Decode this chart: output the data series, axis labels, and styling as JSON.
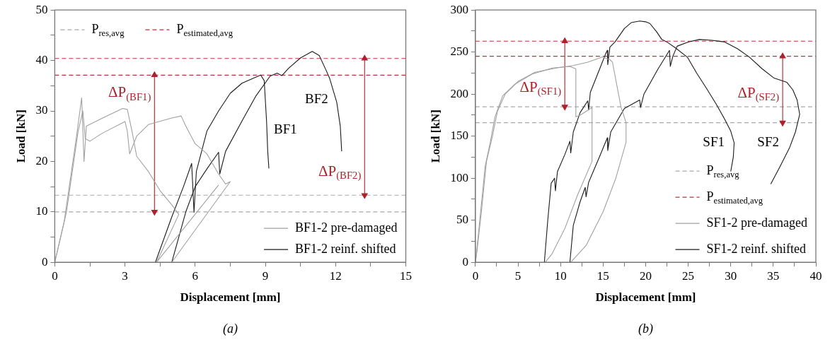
{
  "chart_data": [
    {
      "type": "line",
      "xlabel": "Displacement [mm]",
      "ylabel": "Load [kN]",
      "xlim": [
        0,
        15
      ],
      "xticks": [
        0,
        {
          "value": 1.5,
          "label": null
        },
        3,
        {
          "value": 4.5,
          "label": null
        },
        6,
        {
          "value": 7.5,
          "label": null
        },
        9,
        {
          "value": 10.5,
          "label": null
        },
        12,
        {
          "value": 13.5,
          "label": null
        },
        15
      ],
      "ylim": [
        0,
        50
      ],
      "yticks": [
        0,
        {
          "value": 5,
          "label": null
        },
        10,
        {
          "value": 15,
          "label": null
        },
        20,
        {
          "value": 25,
          "label": null
        },
        30,
        {
          "value": 35,
          "label": null
        },
        40,
        {
          "value": 45,
          "label": null
        },
        50
      ],
      "grid": false,
      "legend": "bottom right",
      "marker": "none",
      "line_style": "solid",
      "series": [
        {
          "name": "BF1-2 pre-damaged",
          "color": "#a0a0a0",
          "x": [
            0,
            0.4,
            0.9,
            1.15,
            1.25,
            1.35,
            2.0,
            2.9,
            3.1,
            3.3,
            3.5,
            4.0,
            4.5,
            5.0,
            5.3,
            4.35,
            7.0
          ],
          "values": [
            0,
            8,
            24,
            32.6,
            20,
            27,
            28.5,
            30.5,
            30.3,
            26,
            21,
            18,
            14.2,
            11.4,
            9.5,
            0,
            15.3
          ]
        },
        {
          "color": "#a0a0a0",
          "x": [
            0,
            0.5,
            1.0,
            1.2,
            1.3,
            1.5,
            2.0,
            3.0,
            3.1,
            3.2,
            3.5,
            4.0,
            5.0,
            5.4,
            5.6,
            6.0,
            6.5,
            7.0,
            7.3,
            7.5,
            5.0
          ],
          "values": [
            0,
            10,
            26,
            30,
            24.5,
            24,
            25.5,
            27.9,
            26,
            21.5,
            25,
            27.3,
            28.6,
            29,
            27,
            23.5,
            21.5,
            17.5,
            15.5,
            16,
            0
          ]
        },
        {
          "name": "BF1-2 reinf. shifted",
          "color": "#1a1a1a",
          "x": [
            4.3,
            5.0,
            5.5,
            5.85,
            5.95,
            6.05,
            6.5,
            7.0,
            7.5,
            8.0,
            8.5,
            8.8,
            8.95,
            9.05,
            9.1,
            9.15
          ],
          "values": [
            0,
            9,
            15,
            19.6,
            9.9,
            18,
            26,
            30,
            33.5,
            35.5,
            36.5,
            37.1,
            36,
            28,
            22,
            18.6
          ]
        },
        {
          "color": "#1a1a1a",
          "x": [
            5.0,
            5.6,
            6.0,
            6.5,
            7.0,
            7.05,
            7.3,
            8.0,
            8.6,
            9.2,
            9.5,
            9.7,
            10.0,
            10.5,
            11.0,
            11.3,
            11.6,
            11.75,
            12.05,
            12.2,
            12.26
          ],
          "values": [
            0,
            10,
            15,
            18.5,
            21.8,
            17.5,
            22,
            28,
            33,
            36.9,
            37.5,
            37,
            38.5,
            40.5,
            41.8,
            41,
            38,
            36.4,
            31.7,
            27,
            22
          ]
        },
        {
          "name": "ΔP$_{(BF1)}$",
          "color": "#b0202a",
          "marker": "triangle",
          "x": [
            4.26,
            4.26
          ],
          "values": [
            37.1,
            10.0
          ]
        },
        {
          "name": "ΔP$_{(BF2)}$",
          "color": "#b0202a",
          "marker": "triangle",
          "x": [
            13.24,
            13.24
          ],
          "values": [
            40.4,
            13.3
          ]
        }
      ],
      "ref_lines": [
        {
          "axis": "y",
          "value": 13.3,
          "label": "P$_{res,avg}$",
          "color": "#a8a8a8",
          "line_style": "dashed"
        },
        {
          "axis": "y",
          "value": 10.0,
          "color": "#a8a8a8",
          "line_style": "dashed"
        },
        {
          "axis": "y",
          "value": 40.4,
          "label": "P$_{estimated,avg}$",
          "color": "#c0303a",
          "line_style": "dashed"
        },
        {
          "axis": "y",
          "value": 37.1,
          "color": "#c0303a",
          "line_style": "dashed"
        }
      ],
      "annotations": [
        "BF1",
        "BF2",
        "(a)"
      ]
    },
    {
      "type": "line",
      "xlabel": "Displacement [mm]",
      "ylabel": "Load [kN]",
      "xlim": [
        0,
        40
      ],
      "xticks": [
        0,
        {
          "value": 2.5,
          "label": null
        },
        5,
        {
          "value": 7.5,
          "label": null
        },
        10,
        {
          "value": 12.5,
          "label": null
        },
        15,
        {
          "value": 17.5,
          "label": null
        },
        20,
        {
          "value": 22.5,
          "label": null
        },
        25,
        {
          "value": 27.5,
          "label": null
        },
        30,
        {
          "value": 32.5,
          "label": null
        },
        35,
        {
          "value": 37.5,
          "label": null
        },
        40
      ],
      "ylim": [
        0,
        300
      ],
      "yticks": [
        0,
        {
          "value": 25,
          "label": null
        },
        50,
        {
          "value": 75,
          "label": null
        },
        100,
        {
          "value": 125,
          "label": null
        },
        150,
        {
          "value": 175,
          "label": null
        },
        200,
        {
          "value": 225,
          "label": null
        },
        250,
        {
          "value": 275,
          "label": null
        },
        300
      ],
      "grid": false,
      "legend": "bottom right",
      "marker": "none",
      "line_style": "solid",
      "series": [
        {
          "name": "SF1-2 pre-damaged",
          "color": "#a0a0a0",
          "x": [
            0,
            0.1,
            0.55,
            1.14,
            1.73,
            2.3,
            3.2,
            4.66,
            6.7,
            9.05,
            11.1,
            11.8,
            11.8,
            12.3,
            13.7,
            13.7,
            12,
            10.5,
            9,
            8.2
          ],
          "values": [
            0,
            9,
            54,
            114,
            142,
            173,
            198,
            212,
            224,
            231,
            233,
            230,
            173,
            175,
            184,
            120,
            80,
            40,
            10,
            0
          ]
        },
        {
          "color": "#a0a0a0",
          "x": [
            0,
            0.2,
            0.7,
            1.3,
            2.0,
            2.6,
            3.5,
            5,
            7,
            9.5,
            11.5,
            13.2,
            14.9,
            15.8,
            16.1,
            17.1,
            17.7,
            17.7,
            16.5,
            15,
            13,
            11.2
          ],
          "values": [
            0,
            15,
            60,
            120,
            150,
            180,
            200,
            215,
            226,
            231,
            234,
            238,
            244,
            241,
            238,
            185,
            166,
            143,
            100,
            60,
            20,
            0
          ]
        },
        {
          "name": "SF1-2 reinf. shifted",
          "color": "#1a1a1a",
          "x": [
            8.1,
            8.5,
            8.9,
            9.3,
            9.4,
            9.64,
            10.5,
            11.1,
            11.2,
            11.5,
            12.3,
            13.2,
            13.3,
            13.5,
            14.6,
            15.3,
            15.5,
            15.55,
            15.8,
            16.4,
            17.5,
            18.3,
            19.3,
            20.0,
            20.5,
            21.3,
            21.9,
            22.5,
            23.5,
            24.9,
            26,
            27.2,
            28.3,
            29.3,
            30.0,
            30.4,
            30.3,
            30.0
          ],
          "values": [
            0,
            50,
            94,
            100,
            85,
            108,
            128,
            144,
            130,
            155,
            178,
            192,
            181,
            202,
            230,
            248,
            252,
            235,
            256,
            262,
            278,
            285,
            287,
            286,
            284,
            274,
            265,
            262,
            255,
            244,
            225,
            206,
            188,
            170,
            156,
            142,
            125,
            108
          ]
        },
        {
          "color": "#1a1a1a",
          "x": [
            11.1,
            11.5,
            12.3,
            12.9,
            13.0,
            13.3,
            14.6,
            15.5,
            15.55,
            15.9,
            17.5,
            19.3,
            19.4,
            19.8,
            21.4,
            22.8,
            22.9,
            23.2,
            23.7,
            25,
            26.3,
            27.8,
            29.3,
            30.8,
            32.2,
            33.7,
            35.1,
            36.6,
            37.3,
            37.8,
            38.1,
            37.6,
            36.9,
            35.8,
            34.7
          ],
          "values": [
            0,
            44,
            72,
            89,
            78,
            95,
            126,
            148,
            133,
            155,
            183,
            193,
            184,
            200,
            229,
            252,
            233,
            245,
            257,
            262,
            265,
            264,
            262,
            254,
            244,
            230,
            219,
            214,
            205,
            193,
            176,
            155,
            136,
            114,
            93
          ]
        },
        {
          "name": "ΔP$_{(SF1)}$",
          "color": "#b0202a",
          "marker": "triangle",
          "x": [
            10.5,
            10.5
          ],
          "values": [
            263,
            185
          ]
        },
        {
          "name": "ΔP$_{(SF2)}$",
          "color": "#b0202a",
          "marker": "triangle",
          "x": [
            36.1,
            36.1
          ],
          "values": [
            245,
            166
          ]
        }
      ],
      "ref_lines": [
        {
          "axis": "y",
          "value": 185,
          "label": "P$_{res,avg}$",
          "color": "#a8a8a8",
          "line_style": "dashed"
        },
        {
          "axis": "y",
          "value": 166,
          "color": "#a8a8a8",
          "line_style": "dashed"
        },
        {
          "axis": "y",
          "value": 263,
          "label": "P$_{estimated,avg}$",
          "color": "#c0303a",
          "line_style": "dashed"
        },
        {
          "axis": "y",
          "value": 245,
          "color": "#c0303a",
          "line_style": "dashed"
        }
      ],
      "annotations": [
        "SF1",
        "SF2",
        "(b)"
      ]
    }
  ]
}
